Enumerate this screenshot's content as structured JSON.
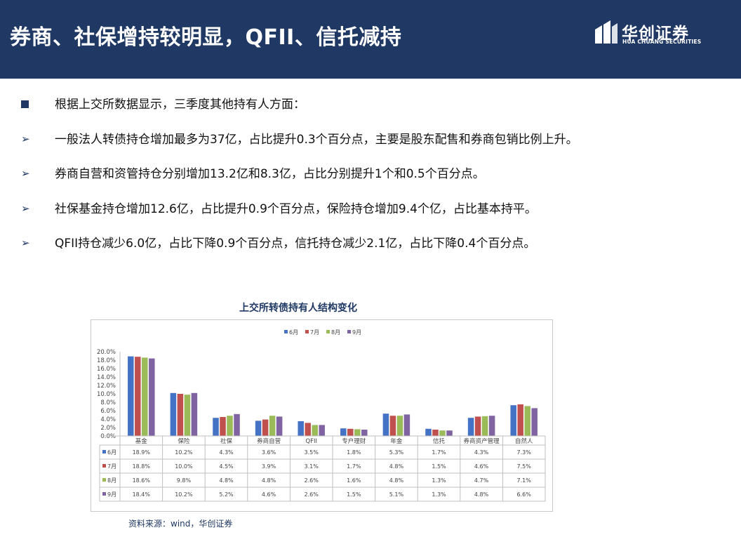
{
  "header": {
    "title": "券商、社保增持较明显，QFII、信托减持",
    "logo_cn": "华创证券",
    "logo_en": "HUA CHUANG SECURITIES"
  },
  "bullets": [
    {
      "marker": "square",
      "text": "根据上交所数据显示，三季度其他持有人方面："
    },
    {
      "marker": "arrow",
      "text": "一般法人转债持仓增加最多为37亿，占比提升0.3个百分点，主要是股东配售和券商包销比例上升。"
    },
    {
      "marker": "arrow",
      "text": "券商自营和资管持仓分别增加13.2亿和8.3亿，占比分别提升1个和0.5个百分点。"
    },
    {
      "marker": "arrow",
      "text": "社保基金持仓增加12.6亿，占比提升0.9个百分点，保险持仓增加9.4个亿，占比基本持平。"
    },
    {
      "marker": "arrow",
      "text": "QFII持仓减少6.0亿，占比下降0.9个百分点，信托持仓减少2.1亿，占比下降0.4个百分点。"
    }
  ],
  "source": "资料来源：wind，华创证券",
  "chart_data": {
    "type": "bar",
    "title": "上交所转债持有人结构变化",
    "categories": [
      "基金",
      "保险",
      "社保",
      "券商自营",
      "QFII",
      "专户理财",
      "年金",
      "信托",
      "券商资产管理",
      "自然人"
    ],
    "series": [
      {
        "name": "6月",
        "color": "#4472c4",
        "values": [
          18.9,
          10.2,
          4.3,
          3.6,
          3.5,
          1.8,
          5.3,
          1.7,
          4.3,
          7.3
        ],
        "labels": [
          "18.9%",
          "10.2%",
          "4.3%",
          "3.6%",
          "3.5%",
          "1.8%",
          "5.3%",
          "1.7%",
          "4.3%",
          "7.3%"
        ]
      },
      {
        "name": "7月",
        "color": "#c0504d",
        "values": [
          18.8,
          10.0,
          4.5,
          3.9,
          3.1,
          1.7,
          4.8,
          1.5,
          4.6,
          7.5
        ],
        "labels": [
          "18.8%",
          "10.0%",
          "4.5%",
          "3.9%",
          "3.1%",
          "1.7%",
          "4.8%",
          "1.5%",
          "4.6%",
          "7.5%"
        ]
      },
      {
        "name": "8月",
        "color": "#9bbb59",
        "values": [
          18.6,
          9.8,
          4.8,
          4.8,
          2.6,
          1.6,
          4.8,
          1.3,
          4.7,
          7.1
        ],
        "labels": [
          "18.6%",
          "9.8%",
          "4.8%",
          "4.8%",
          "2.6%",
          "1.6%",
          "4.8%",
          "1.3%",
          "4.7%",
          "7.1%"
        ]
      },
      {
        "name": "9月",
        "color": "#8064a2",
        "values": [
          18.4,
          10.2,
          5.2,
          4.6,
          2.6,
          1.5,
          5.1,
          1.3,
          4.8,
          6.6
        ],
        "labels": [
          "18.4%",
          "10.2%",
          "5.2%",
          "4.6%",
          "2.6%",
          "1.5%",
          "5.1%",
          "1.3%",
          "4.8%",
          "6.6%"
        ]
      }
    ],
    "y_ticks": [
      "0.0%",
      "2.0%",
      "4.0%",
      "6.0%",
      "8.0%",
      "10.0%",
      "12.0%",
      "14.0%",
      "16.0%",
      "18.0%",
      "20.0%"
    ],
    "ylim": [
      0,
      20
    ],
    "legend": "top-center",
    "data_table": true,
    "grid": false
  }
}
